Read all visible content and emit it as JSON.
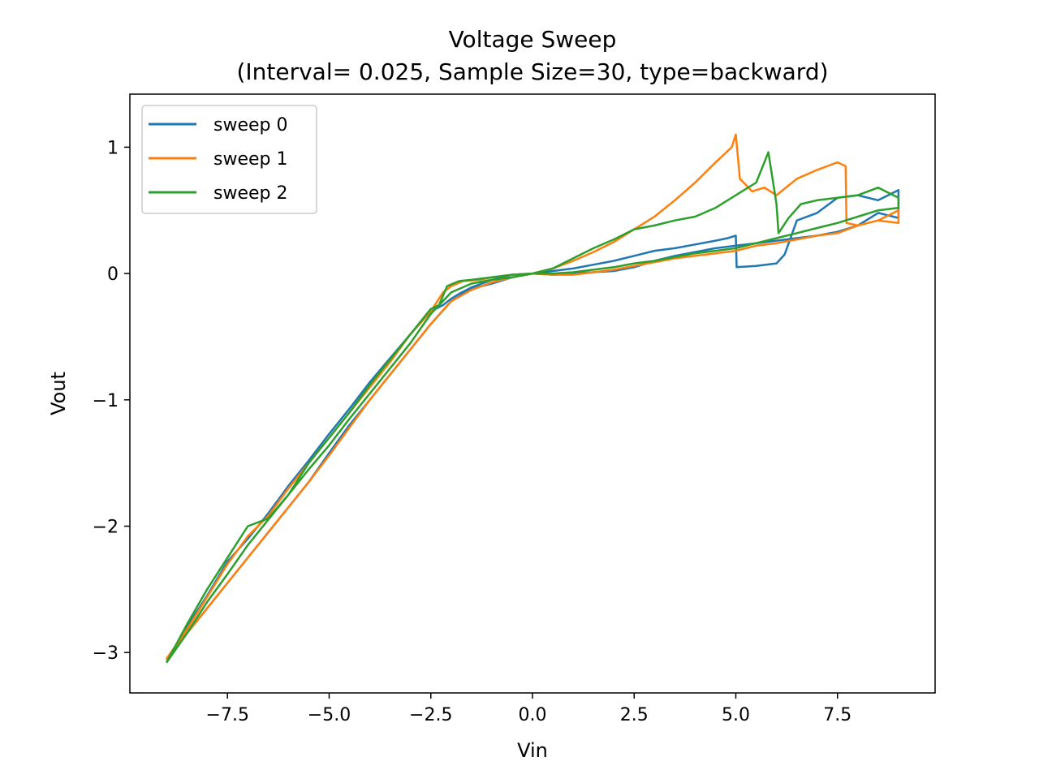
{
  "chart_data": {
    "type": "line",
    "title": "Voltage Sweep",
    "subtitle": "(Interval= 0.025, Sample Size=30, type=backward)",
    "xlabel": "Vin",
    "ylabel": "Vout",
    "xlim": [
      -9.9,
      9.9
    ],
    "ylim": [
      -3.32,
      1.42
    ],
    "xticks": [
      -7.5,
      -5.0,
      -2.5,
      0.0,
      2.5,
      5.0,
      7.5
    ],
    "xtick_labels": [
      "−7.5",
      "−5.0",
      "−2.5",
      "0.0",
      "2.5",
      "5.0",
      "7.5"
    ],
    "yticks": [
      -3,
      -2,
      -1,
      0,
      1
    ],
    "ytick_labels": [
      "−3",
      "−2",
      "−1",
      "0",
      "1"
    ],
    "grid": false,
    "legend_position": "top-left",
    "series": [
      {
        "name": "sweep 0",
        "color": "#1f77b4",
        "x": [
          -9.0,
          -8.5,
          -8.0,
          -7.5,
          -7.0,
          -6.5,
          -6.0,
          -5.5,
          -5.0,
          -4.5,
          -4.0,
          -3.5,
          -3.0,
          -2.5,
          -2.2,
          -2.0,
          -1.8,
          -1.5,
          -1.0,
          -0.5,
          0.0,
          0.5,
          1.0,
          1.5,
          2.0,
          2.5,
          3.0,
          3.5,
          4.0,
          4.5,
          4.8,
          5.0,
          5.02,
          5.5,
          6.0,
          6.2,
          6.5,
          7.0,
          7.5,
          8.0,
          8.5,
          9.0,
          9.0,
          8.5,
          8.0,
          7.5,
          7.0,
          6.5,
          6.0,
          5.5,
          5.0,
          4.5,
          4.0,
          3.5,
          3.0,
          2.5,
          2.0,
          1.5,
          1.0,
          0.5,
          0.0,
          -0.5,
          -1.0,
          -1.5,
          -2.0,
          -2.5,
          -3.0,
          -3.5,
          -4.0,
          -4.5,
          -5.0,
          -5.5,
          -6.0,
          -6.5,
          -7.0,
          -7.5,
          -8.0,
          -8.5,
          -9.0
        ],
        "y": [
          -3.08,
          -2.8,
          -2.55,
          -2.28,
          -2.1,
          -1.9,
          -1.68,
          -1.48,
          -1.27,
          -1.07,
          -0.86,
          -0.67,
          -0.48,
          -0.3,
          -0.25,
          -0.2,
          -0.16,
          -0.11,
          -0.05,
          -0.01,
          0.0,
          0.02,
          0.04,
          0.07,
          0.1,
          0.14,
          0.18,
          0.2,
          0.23,
          0.26,
          0.28,
          0.3,
          0.05,
          0.06,
          0.08,
          0.15,
          0.42,
          0.48,
          0.6,
          0.62,
          0.58,
          0.66,
          0.44,
          0.48,
          0.38,
          0.33,
          0.3,
          0.28,
          0.26,
          0.24,
          0.22,
          0.2,
          0.17,
          0.14,
          0.1,
          0.05,
          0.02,
          0.01,
          0.0,
          -0.01,
          0.0,
          -0.03,
          -0.08,
          -0.12,
          -0.22,
          -0.4,
          -0.6,
          -0.8,
          -1.0,
          -1.2,
          -1.42,
          -1.65,
          -1.85,
          -2.05,
          -2.25,
          -2.45,
          -2.65,
          -2.85,
          -3.05
        ]
      },
      {
        "name": "sweep 1",
        "color": "#ff7f0e",
        "x": [
          -9.0,
          -8.5,
          -8.0,
          -7.5,
          -7.0,
          -6.5,
          -6.0,
          -5.5,
          -5.0,
          -4.5,
          -4.0,
          -3.5,
          -3.0,
          -2.5,
          -2.2,
          -2.0,
          -1.7,
          -1.3,
          -1.0,
          -0.5,
          0.0,
          0.5,
          1.0,
          1.5,
          2.0,
          2.5,
          3.0,
          3.5,
          4.0,
          4.5,
          4.9,
          5.0,
          5.1,
          5.4,
          5.7,
          6.0,
          6.5,
          7.0,
          7.5,
          7.7,
          7.72,
          8.0,
          8.5,
          9.0,
          9.0,
          8.5,
          8.0,
          7.5,
          7.0,
          6.5,
          6.0,
          5.5,
          5.0,
          4.5,
          4.0,
          3.5,
          3.0,
          2.5,
          2.0,
          1.5,
          1.0,
          0.5,
          0.0,
          -0.5,
          -1.0,
          -1.5,
          -2.0,
          -2.5,
          -3.0,
          -3.5,
          -4.0,
          -4.5,
          -5.0,
          -5.5,
          -6.0,
          -6.5,
          -7.0,
          -7.5,
          -8.0,
          -8.5,
          -9.0
        ],
        "y": [
          -3.05,
          -2.82,
          -2.56,
          -2.3,
          -2.08,
          -1.92,
          -1.7,
          -1.5,
          -1.3,
          -1.1,
          -0.9,
          -0.7,
          -0.48,
          -0.3,
          -0.15,
          -0.1,
          -0.06,
          -0.05,
          -0.03,
          -0.01,
          0.0,
          0.04,
          0.1,
          0.17,
          0.25,
          0.35,
          0.45,
          0.58,
          0.72,
          0.88,
          1.0,
          1.1,
          0.75,
          0.65,
          0.68,
          0.62,
          0.75,
          0.82,
          0.88,
          0.85,
          0.4,
          0.38,
          0.42,
          0.5,
          0.4,
          0.42,
          0.38,
          0.32,
          0.3,
          0.27,
          0.24,
          0.22,
          0.18,
          0.16,
          0.14,
          0.12,
          0.09,
          0.06,
          0.03,
          0.01,
          -0.01,
          -0.01,
          0.0,
          -0.03,
          -0.07,
          -0.13,
          -0.22,
          -0.4,
          -0.6,
          -0.8,
          -1.0,
          -1.22,
          -1.44,
          -1.65,
          -1.85,
          -2.05,
          -2.25,
          -2.45,
          -2.65,
          -2.85,
          -3.06
        ]
      },
      {
        "name": "sweep 2",
        "color": "#2ca02c",
        "x": [
          -9.0,
          -8.5,
          -8.0,
          -7.5,
          -7.0,
          -6.5,
          -6.0,
          -5.5,
          -5.0,
          -4.5,
          -4.0,
          -3.5,
          -3.0,
          -2.5,
          -2.3,
          -2.1,
          -1.8,
          -1.5,
          -1.0,
          -0.5,
          0.0,
          0.5,
          1.0,
          1.5,
          2.0,
          2.5,
          3.0,
          3.5,
          4.0,
          4.5,
          5.0,
          5.5,
          5.8,
          6.0,
          6.05,
          6.3,
          6.6,
          7.0,
          7.5,
          8.0,
          8.5,
          9.0,
          9.0,
          8.5,
          8.0,
          7.5,
          7.0,
          6.5,
          6.0,
          5.5,
          5.0,
          4.5,
          4.0,
          3.5,
          3.0,
          2.5,
          2.0,
          1.5,
          1.0,
          0.5,
          0.0,
          -0.5,
          -1.0,
          -1.5,
          -2.0,
          -2.5,
          -3.0,
          -3.5,
          -4.0,
          -4.5,
          -5.0,
          -5.5,
          -6.0,
          -6.5,
          -7.0,
          -7.5,
          -8.0,
          -8.5,
          -9.0
        ],
        "y": [
          -3.08,
          -2.78,
          -2.5,
          -2.25,
          -2.0,
          -1.94,
          -1.75,
          -1.5,
          -1.3,
          -1.1,
          -0.88,
          -0.68,
          -0.48,
          -0.28,
          -0.25,
          -0.1,
          -0.06,
          -0.05,
          -0.03,
          -0.01,
          0.0,
          0.04,
          0.12,
          0.2,
          0.27,
          0.35,
          0.38,
          0.42,
          0.45,
          0.52,
          0.62,
          0.72,
          0.96,
          0.55,
          0.32,
          0.44,
          0.55,
          0.58,
          0.6,
          0.62,
          0.68,
          0.6,
          0.52,
          0.5,
          0.45,
          0.4,
          0.36,
          0.32,
          0.28,
          0.24,
          0.2,
          0.18,
          0.16,
          0.13,
          0.1,
          0.08,
          0.05,
          0.03,
          0.01,
          0.0,
          0.0,
          -0.03,
          -0.05,
          -0.08,
          -0.15,
          -0.32,
          -0.55,
          -0.75,
          -0.95,
          -1.15,
          -1.36,
          -1.55,
          -1.75,
          -1.95,
          -2.15,
          -2.38,
          -2.6,
          -2.85,
          -3.08
        ]
      }
    ]
  }
}
